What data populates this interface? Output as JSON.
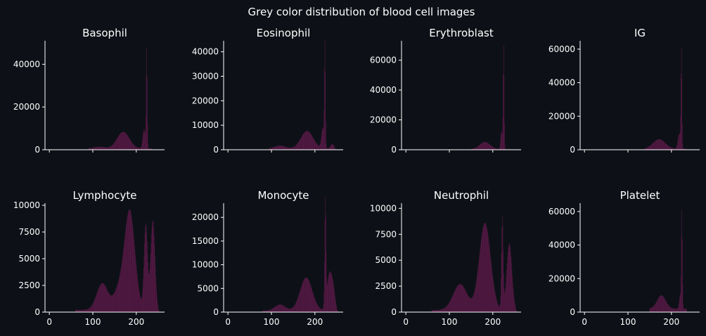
{
  "figure": {
    "title": "Grey color distribution of blood cell images",
    "bar_color": "#5a1a48",
    "text_color": "#ffffff",
    "background": "#0d1117"
  },
  "chart_data": [
    {
      "type": "bar",
      "title": "Basophil",
      "xlim": [
        -10,
        265
      ],
      "ylim": [
        0,
        51000
      ],
      "xticks": [
        0,
        100,
        200
      ],
      "xtick_labels": [],
      "yticks": [
        0,
        20000,
        40000
      ],
      "peaks": [
        {
          "center": 170,
          "width": 14,
          "height": 7800
        },
        {
          "center": 115,
          "width": 12,
          "height": 800
        },
        {
          "center": 218,
          "width": 3,
          "height": 9000
        },
        {
          "center": 224,
          "width": 1.2,
          "height": 46000
        }
      ],
      "floor": {
        "start": 90,
        "end": 235,
        "height": 600
      }
    },
    {
      "type": "bar",
      "title": "Eosinophil",
      "xlim": [
        -10,
        265
      ],
      "ylim": [
        0,
        44500
      ],
      "xticks": [
        0,
        100,
        200
      ],
      "xtick_labels": [],
      "yticks": [
        0,
        10000,
        20000,
        30000,
        40000
      ],
      "peaks": [
        {
          "center": 182,
          "width": 14,
          "height": 7200
        },
        {
          "center": 120,
          "width": 12,
          "height": 1200
        },
        {
          "center": 218,
          "width": 3,
          "height": 8000
        },
        {
          "center": 223,
          "width": 1.2,
          "height": 42000
        },
        {
          "center": 240,
          "width": 4,
          "height": 1800
        }
      ],
      "floor": {
        "start": 95,
        "end": 245,
        "height": 500
      }
    },
    {
      "type": "bar",
      "title": "Erythroblast",
      "xlim": [
        -10,
        265
      ],
      "ylim": [
        0,
        73000
      ],
      "xticks": [
        0,
        100,
        200
      ],
      "xtick_labels": [],
      "yticks": [
        0,
        20000,
        40000,
        60000
      ],
      "peaks": [
        {
          "center": 182,
          "width": 12,
          "height": 4800
        },
        {
          "center": 220,
          "width": 2,
          "height": 12000
        },
        {
          "center": 225,
          "width": 1.2,
          "height": 69000
        }
      ],
      "floor": {
        "start": 150,
        "end": 240,
        "height": 400
      }
    },
    {
      "type": "bar",
      "title": "IG",
      "xlim": [
        -10,
        265
      ],
      "ylim": [
        0,
        65000
      ],
      "xticks": [
        0,
        100,
        200
      ],
      "xtick_labels": [],
      "yticks": [
        0,
        20000,
        40000,
        60000
      ],
      "peaks": [
        {
          "center": 172,
          "width": 14,
          "height": 5800
        },
        {
          "center": 218,
          "width": 3,
          "height": 9000
        },
        {
          "center": 223,
          "width": 1.2,
          "height": 58000
        }
      ],
      "floor": {
        "start": 140,
        "end": 235,
        "height": 500
      }
    },
    {
      "type": "bar",
      "title": "Lymphocyte",
      "xlim": [
        -10,
        265
      ],
      "ylim": [
        0,
        10200
      ],
      "xticks": [
        0,
        100,
        200
      ],
      "xtick_labels": [
        "0",
        "100",
        "200"
      ],
      "yticks": [
        0,
        2500,
        5000,
        7500,
        10000
      ],
      "peaks": [
        {
          "center": 185,
          "width": 12,
          "height": 9200
        },
        {
          "center": 122,
          "width": 13,
          "height": 2500
        },
        {
          "center": 160,
          "width": 12,
          "height": 1800
        },
        {
          "center": 222,
          "width": 4,
          "height": 8000
        },
        {
          "center": 238,
          "width": 5,
          "height": 8400
        }
      ],
      "floor": {
        "start": 60,
        "end": 250,
        "height": 200
      }
    },
    {
      "type": "bar",
      "title": "Monocyte",
      "xlim": [
        -10,
        265
      ],
      "ylim": [
        0,
        23000
      ],
      "xticks": [
        0,
        100,
        200
      ],
      "xtick_labels": [
        "0",
        "100",
        "200"
      ],
      "yticks": [
        0,
        5000,
        10000,
        15000,
        20000
      ],
      "peaks": [
        {
          "center": 180,
          "width": 14,
          "height": 7000
        },
        {
          "center": 120,
          "width": 12,
          "height": 1300
        },
        {
          "center": 224,
          "width": 1.5,
          "height": 22000
        },
        {
          "center": 234,
          "width": 6,
          "height": 8000
        },
        {
          "center": 243,
          "width": 4,
          "height": 3000
        }
      ],
      "floor": {
        "start": 80,
        "end": 250,
        "height": 300
      }
    },
    {
      "type": "bar",
      "title": "Neutrophil",
      "xlim": [
        -10,
        265
      ],
      "ylim": [
        0,
        10500
      ],
      "xticks": [
        0,
        100,
        200
      ],
      "xtick_labels": [
        "0",
        "100",
        "200"
      ],
      "yticks": [
        0,
        2500,
        5000,
        7500,
        10000
      ],
      "peaks": [
        {
          "center": 182,
          "width": 13,
          "height": 8400
        },
        {
          "center": 125,
          "width": 16,
          "height": 2500
        },
        {
          "center": 222,
          "width": 2,
          "height": 8800
        },
        {
          "center": 238,
          "width": 6,
          "height": 6400
        }
      ],
      "floor": {
        "start": 60,
        "end": 252,
        "height": 200
      }
    },
    {
      "type": "bar",
      "title": "Platelet",
      "xlim": [
        -10,
        265
      ],
      "ylim": [
        0,
        65000
      ],
      "xticks": [
        0,
        100,
        200
      ],
      "xtick_labels": [
        "0",
        "100",
        "200"
      ],
      "yticks": [
        0,
        20000,
        40000,
        60000
      ],
      "peaks": [
        {
          "center": 177,
          "width": 10,
          "height": 8000
        },
        {
          "center": 220,
          "width": 2,
          "height": 8000
        },
        {
          "center": 224,
          "width": 1.2,
          "height": 58000
        }
      ],
      "floor": {
        "start": 150,
        "end": 235,
        "height": 2000
      }
    }
  ]
}
